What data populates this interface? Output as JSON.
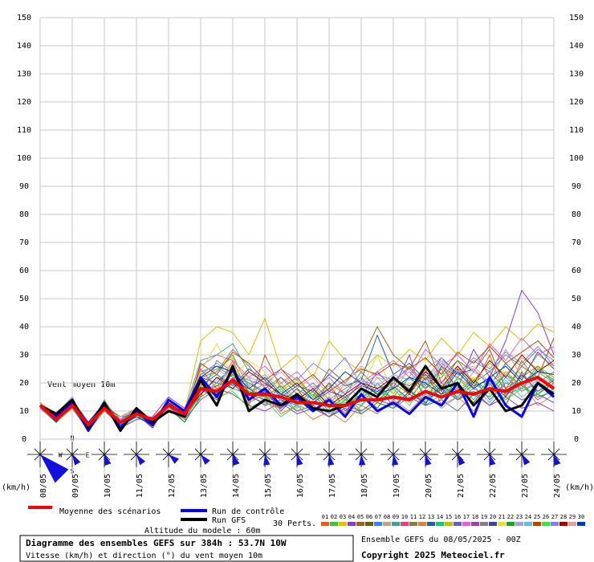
{
  "chart_data": {
    "type": "line",
    "title": "Diagramme des ensembles GEFS sur 384h : 53.7N 10W",
    "subtitle": "Vitesse (km/h) et direction (°) du vent moyen 10m",
    "run_label": "Ensemble GEFS du 08/05/2025 - 00Z",
    "copyright": "Copyright 2025 Meteociel.fr",
    "annotation": "Vent moyen 10m",
    "altitude": "Altitude du modele : 60m",
    "perts_label": "30 Perts.",
    "y_unit": "(km/h)",
    "compass": [
      "N",
      "W",
      "E",
      "S"
    ],
    "categories": [
      "08/05",
      null,
      "09/05",
      null,
      "10/05",
      null,
      "11/05",
      null,
      "12/05",
      null,
      "13/05",
      null,
      "14/05",
      null,
      "15/05",
      null,
      "16/05",
      null,
      "17/05",
      null,
      "18/05",
      null,
      "19/05",
      null,
      "20/05",
      null,
      "21/05",
      null,
      "22/05",
      null,
      "23/05",
      null,
      "24/05"
    ],
    "ylim": [
      0,
      150
    ],
    "yticks": [
      0,
      10,
      20,
      30,
      40,
      50,
      60,
      70,
      80,
      90,
      100,
      110,
      120,
      130,
      140,
      150
    ],
    "grid": true,
    "series": [
      {
        "name": "01",
        "color": "#e06020",
        "values": [
          13,
          8,
          15,
          4,
          12,
          7,
          10,
          5,
          14,
          9,
          25,
          18,
          28,
          16,
          20,
          12,
          14,
          10,
          15,
          9,
          18,
          13,
          20,
          16,
          25,
          12,
          22,
          18,
          30,
          15,
          28,
          20,
          24
        ]
      },
      {
        "name": "02",
        "color": "#40c040",
        "values": [
          12,
          6,
          11,
          3,
          10,
          5,
          8,
          6,
          11,
          7,
          20,
          24,
          30,
          18,
          14,
          16,
          10,
          12,
          8,
          14,
          12,
          17,
          15,
          22,
          18,
          25,
          14,
          20,
          16,
          24,
          19,
          26,
          22
        ]
      },
      {
        "name": "03",
        "color": "#e0c000",
        "values": [
          11,
          7,
          13,
          5,
          12,
          8,
          9,
          4,
          13,
          10,
          35,
          40,
          38,
          30,
          43,
          25,
          30,
          22,
          35,
          28,
          24,
          30,
          26,
          32,
          28,
          36,
          30,
          38,
          33,
          40,
          35,
          41,
          38
        ]
      },
      {
        "name": "04",
        "color": "#8040c0",
        "values": [
          12,
          9,
          14,
          6,
          11,
          4,
          7,
          8,
          15,
          11,
          22,
          20,
          26,
          14,
          18,
          10,
          16,
          12,
          20,
          10,
          15,
          24,
          18,
          30,
          12,
          26,
          18,
          32,
          22,
          35,
          53,
          45,
          30
        ]
      },
      {
        "name": "05",
        "color": "#a06020",
        "values": [
          13,
          7,
          12,
          4,
          13,
          6,
          10,
          5,
          12,
          8,
          18,
          16,
          24,
          12,
          30,
          18,
          22,
          15,
          25,
          20,
          28,
          40,
          30,
          25,
          35,
          20,
          28,
          24,
          32,
          18,
          26,
          22,
          36
        ]
      },
      {
        "name": "06",
        "color": "#606000",
        "values": [
          12,
          8,
          14,
          5,
          10,
          7,
          8,
          6,
          10,
          9,
          16,
          22,
          20,
          18,
          15,
          13,
          18,
          10,
          14,
          12,
          16,
          11,
          19,
          14,
          22,
          16,
          18,
          13,
          20,
          12,
          24,
          16,
          20
        ]
      },
      {
        "name": "07",
        "color": "#4080e0",
        "values": [
          11,
          6,
          12,
          3,
          11,
          5,
          9,
          7,
          12,
          6,
          24,
          26,
          22,
          20,
          17,
          14,
          12,
          16,
          10,
          13,
          15,
          18,
          12,
          17,
          14,
          19,
          16,
          22,
          14,
          20,
          18,
          25,
          21
        ]
      },
      {
        "name": "08",
        "color": "#c0a080",
        "values": [
          12,
          7,
          13,
          6,
          12,
          8,
          11,
          4,
          14,
          8,
          20,
          14,
          18,
          22,
          12,
          20,
          14,
          18,
          12,
          20,
          14,
          22,
          16,
          26,
          20,
          28,
          16,
          24,
          20,
          32,
          22,
          30,
          26
        ]
      },
      {
        "name": "09",
        "color": "#40a0a0",
        "values": [
          13,
          9,
          15,
          4,
          14,
          5,
          10,
          6,
          13,
          10,
          28,
          30,
          34,
          24,
          20,
          16,
          14,
          18,
          12,
          16,
          10,
          14,
          18,
          22,
          16,
          20,
          14,
          18,
          15,
          22,
          17,
          20,
          18
        ]
      },
      {
        "name": "10",
        "color": "#e04080",
        "values": [
          12,
          7,
          11,
          5,
          11,
          6,
          8,
          5,
          11,
          7,
          17,
          19,
          21,
          15,
          13,
          11,
          16,
          13,
          18,
          14,
          20,
          16,
          22,
          18,
          24,
          20,
          26,
          18,
          22,
          16,
          20,
          14,
          18
        ]
      },
      {
        "name": "11",
        "color": "#808040",
        "values": [
          11,
          8,
          13,
          4,
          12,
          7,
          10,
          6,
          12,
          9,
          15,
          28,
          24,
          20,
          16,
          22,
          18,
          14,
          20,
          16,
          24,
          18,
          20,
          26,
          18,
          22,
          28,
          20,
          24,
          18,
          22,
          26,
          20
        ]
      },
      {
        "name": "12",
        "color": "#e08040",
        "values": [
          12,
          6,
          14,
          3,
          13,
          5,
          9,
          7,
          13,
          8,
          21,
          17,
          27,
          13,
          16,
          9,
          12,
          7,
          10,
          6,
          12,
          9,
          14,
          10,
          16,
          12,
          15,
          10,
          18,
          14,
          20,
          12,
          16
        ]
      },
      {
        "name": "13",
        "color": "#2060a0",
        "values": [
          13,
          8,
          12,
          5,
          10,
          6,
          11,
          5,
          11,
          9,
          19,
          23,
          19,
          25,
          21,
          15,
          19,
          17,
          23,
          19,
          21,
          37,
          23,
          27,
          21,
          29,
          23,
          25,
          19,
          27,
          21,
          31,
          25
        ]
      },
      {
        "name": "14",
        "color": "#20c080",
        "values": [
          12,
          7,
          13,
          4,
          11,
          8,
          8,
          6,
          12,
          7,
          16,
          20,
          18,
          16,
          14,
          18,
          12,
          16,
          10,
          14,
          12,
          20,
          14,
          18,
          12,
          16,
          20,
          14,
          22,
          16,
          18,
          24,
          20
        ]
      },
      {
        "name": "15",
        "color": "#c0c000",
        "values": [
          11,
          9,
          14,
          6,
          12,
          5,
          10,
          4,
          14,
          10,
          23,
          25,
          29,
          19,
          23,
          17,
          21,
          15,
          19,
          13,
          17,
          15,
          21,
          17,
          23,
          19,
          25,
          21,
          27,
          23,
          29,
          25,
          27
        ]
      },
      {
        "name": "16",
        "color": "#6060c0",
        "values": [
          12,
          6,
          12,
          5,
          13,
          7,
          9,
          6,
          11,
          8,
          18,
          14,
          22,
          16,
          12,
          14,
          10,
          12,
          8,
          11,
          9,
          13,
          11,
          15,
          12,
          14,
          10,
          16,
          12,
          18,
          14,
          16,
          13
        ]
      },
      {
        "name": "17",
        "color": "#e060e0",
        "values": [
          13,
          7,
          15,
          3,
          12,
          6,
          10,
          7,
          13,
          9,
          26,
          30,
          28,
          22,
          26,
          20,
          24,
          18,
          22,
          16,
          20,
          24,
          28,
          22,
          32,
          26,
          30,
          24,
          34,
          28,
          36,
          30,
          33
        ]
      },
      {
        "name": "18",
        "color": "#a040a0",
        "values": [
          12,
          8,
          11,
          4,
          11,
          5,
          8,
          5,
          12,
          7,
          14,
          18,
          16,
          12,
          10,
          13,
          9,
          11,
          8,
          12,
          10,
          14,
          12,
          16,
          13,
          18,
          14,
          17,
          12,
          15,
          11,
          13,
          10
        ]
      },
      {
        "name": "19",
        "color": "#808080",
        "values": [
          11,
          6,
          13,
          5,
          10,
          7,
          11,
          6,
          10,
          8,
          22,
          24,
          32,
          26,
          18,
          22,
          16,
          20,
          14,
          18,
          22,
          16,
          20,
          24,
          18,
          26,
          22,
          28,
          24,
          30,
          26,
          32,
          28
        ]
      },
      {
        "name": "20",
        "color": "#4040a0",
        "values": [
          12,
          7,
          14,
          6,
          12,
          4,
          9,
          4,
          13,
          9,
          20,
          16,
          20,
          14,
          17,
          11,
          15,
          13,
          17,
          15,
          19,
          17,
          21,
          19,
          23,
          17,
          25,
          19,
          21,
          15,
          23,
          17,
          21
        ]
      },
      {
        "name": "21",
        "color": "#e0e040",
        "values": [
          13,
          9,
          12,
          3,
          13,
          6,
          10,
          7,
          12,
          10,
          24,
          34,
          22,
          28,
          24,
          18,
          20,
          14,
          16,
          12,
          18,
          30,
          16,
          20,
          14,
          24,
          18,
          22,
          16,
          26,
          20,
          24,
          22
        ]
      },
      {
        "name": "22",
        "color": "#20a020",
        "values": [
          12,
          6,
          13,
          5,
          11,
          8,
          8,
          5,
          11,
          6,
          15,
          19,
          23,
          17,
          15,
          19,
          13,
          17,
          11,
          15,
          9,
          13,
          11,
          17,
          13,
          19,
          15,
          21,
          17,
          23,
          19,
          15,
          17
        ]
      },
      {
        "name": "23",
        "color": "#a0a0e0",
        "values": [
          11,
          8,
          15,
          4,
          12,
          5,
          11,
          6,
          14,
          8,
          21,
          25,
          21,
          19,
          23,
          17,
          15,
          19,
          13,
          17,
          21,
          19,
          23,
          21,
          25,
          29,
          21,
          25,
          19,
          23,
          17,
          21,
          19
        ]
      },
      {
        "name": "24",
        "color": "#60c0e0",
        "values": [
          12,
          7,
          12,
          6,
          10,
          7,
          9,
          7,
          12,
          9,
          17,
          21,
          25,
          19,
          13,
          17,
          11,
          15,
          9,
          13,
          17,
          15,
          19,
          13,
          17,
          11,
          15,
          19,
          13,
          21,
          15,
          19,
          17
        ]
      },
      {
        "name": "25",
        "color": "#c04000",
        "values": [
          13,
          8,
          14,
          4,
          13,
          6,
          10,
          4,
          13,
          7,
          27,
          23,
          31,
          27,
          21,
          25,
          19,
          23,
          17,
          21,
          25,
          23,
          27,
          25,
          29,
          23,
          31,
          27,
          33,
          27,
          31,
          35,
          29
        ]
      },
      {
        "name": "26",
        "color": "#40e040",
        "values": [
          12,
          6,
          11,
          5,
          12,
          4,
          8,
          6,
          11,
          10,
          19,
          15,
          17,
          11,
          14,
          8,
          12,
          10,
          14,
          12,
          16,
          14,
          18,
          12,
          20,
          14,
          22,
          16,
          20,
          14,
          18,
          16,
          22
        ]
      },
      {
        "name": "27",
        "color": "#8080ff",
        "values": [
          11,
          9,
          13,
          3,
          11,
          7,
          11,
          5,
          12,
          8,
          23,
          27,
          23,
          21,
          19,
          25,
          21,
          27,
          23,
          29,
          19,
          23,
          21,
          25,
          19,
          27,
          23,
          29,
          25,
          31,
          27,
          33,
          26
        ]
      },
      {
        "name": "28",
        "color": "#a00000",
        "values": [
          12,
          7,
          14,
          5,
          12,
          6,
          9,
          7,
          13,
          9,
          16,
          22,
          18,
          24,
          20,
          16,
          14,
          18,
          12,
          16,
          20,
          18,
          22,
          16,
          24,
          18,
          26,
          20,
          28,
          22,
          30,
          24,
          28
        ]
      },
      {
        "name": "29",
        "color": "#e0a0a0",
        "values": [
          13,
          8,
          12,
          4,
          10,
          8,
          10,
          6,
          11,
          7,
          20,
          18,
          26,
          22,
          20,
          24,
          18,
          22,
          16,
          20,
          26,
          22,
          20,
          24,
          22,
          28,
          24,
          26,
          20,
          24,
          18,
          22,
          20
        ]
      },
      {
        "name": "30",
        "color": "#0040a0",
        "values": [
          12,
          6,
          13,
          6,
          13,
          5,
          8,
          5,
          12,
          10,
          22,
          26,
          24,
          18,
          22,
          16,
          20,
          14,
          18,
          24,
          20,
          16,
          18,
          22,
          20,
          16,
          24,
          18,
          22,
          26,
          20,
          24,
          23
        ]
      },
      {
        "name": "Run de contrôle",
        "color": "#0000ff",
        "values": [
          12,
          8,
          13,
          3,
          12,
          4,
          10,
          5,
          14,
          10,
          22,
          15,
          25,
          14,
          18,
          12,
          15,
          10,
          14,
          8,
          16,
          10,
          13,
          9,
          15,
          12,
          20,
          8,
          22,
          12,
          8,
          20,
          15
        ]
      },
      {
        "name": "Run GFS",
        "color": "#000000",
        "values": [
          12,
          9,
          14,
          4,
          13,
          3,
          11,
          6,
          10,
          8,
          21,
          12,
          26,
          10,
          14,
          12,
          16,
          11,
          10,
          12,
          18,
          15,
          22,
          17,
          26,
          18,
          20,
          12,
          18,
          10,
          12,
          20,
          16
        ]
      },
      {
        "name": "Moyenne des scénarios",
        "color": "#ff0000",
        "values": [
          12,
          7,
          12,
          5,
          11,
          6,
          9,
          7,
          12,
          9,
          18,
          17,
          21,
          16,
          16,
          15,
          13,
          13,
          12,
          12,
          14,
          14,
          15,
          14,
          17,
          15,
          17,
          16,
          18,
          17,
          20,
          22,
          18
        ]
      }
    ]
  }
}
